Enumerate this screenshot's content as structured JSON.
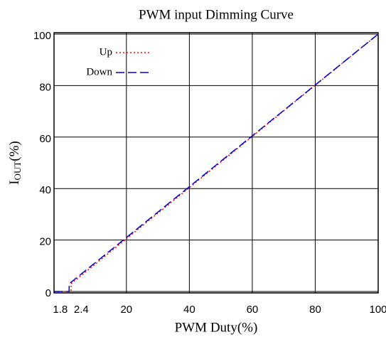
{
  "chart_data": {
    "type": "line",
    "title": "PWM input Dimming Curve",
    "x_label": "PWM Duty(%)",
    "y_label": "I",
    "y_label_sub": "OUT",
    "y_label_suffix": "(%)",
    "xlim": [
      -3,
      100
    ],
    "ylim": [
      0,
      100
    ],
    "xticks": [
      1.8,
      2.4,
      20,
      40,
      60,
      80,
      100
    ],
    "yticks": [
      0,
      20,
      40,
      60,
      80,
      100
    ],
    "grid": true,
    "legend": "upper left",
    "series": [
      {
        "name": "Up",
        "color": "#ff0000",
        "style": "dotted",
        "x": [
          -3,
          2.4,
          2.4,
          100
        ],
        "values": [
          0,
          0,
          3,
          100
        ]
      },
      {
        "name": "Down",
        "color": "#0000cc",
        "style": "dashed",
        "x": [
          -3,
          1.8,
          1.8,
          100
        ],
        "values": [
          0,
          0,
          3,
          100
        ]
      }
    ]
  }
}
